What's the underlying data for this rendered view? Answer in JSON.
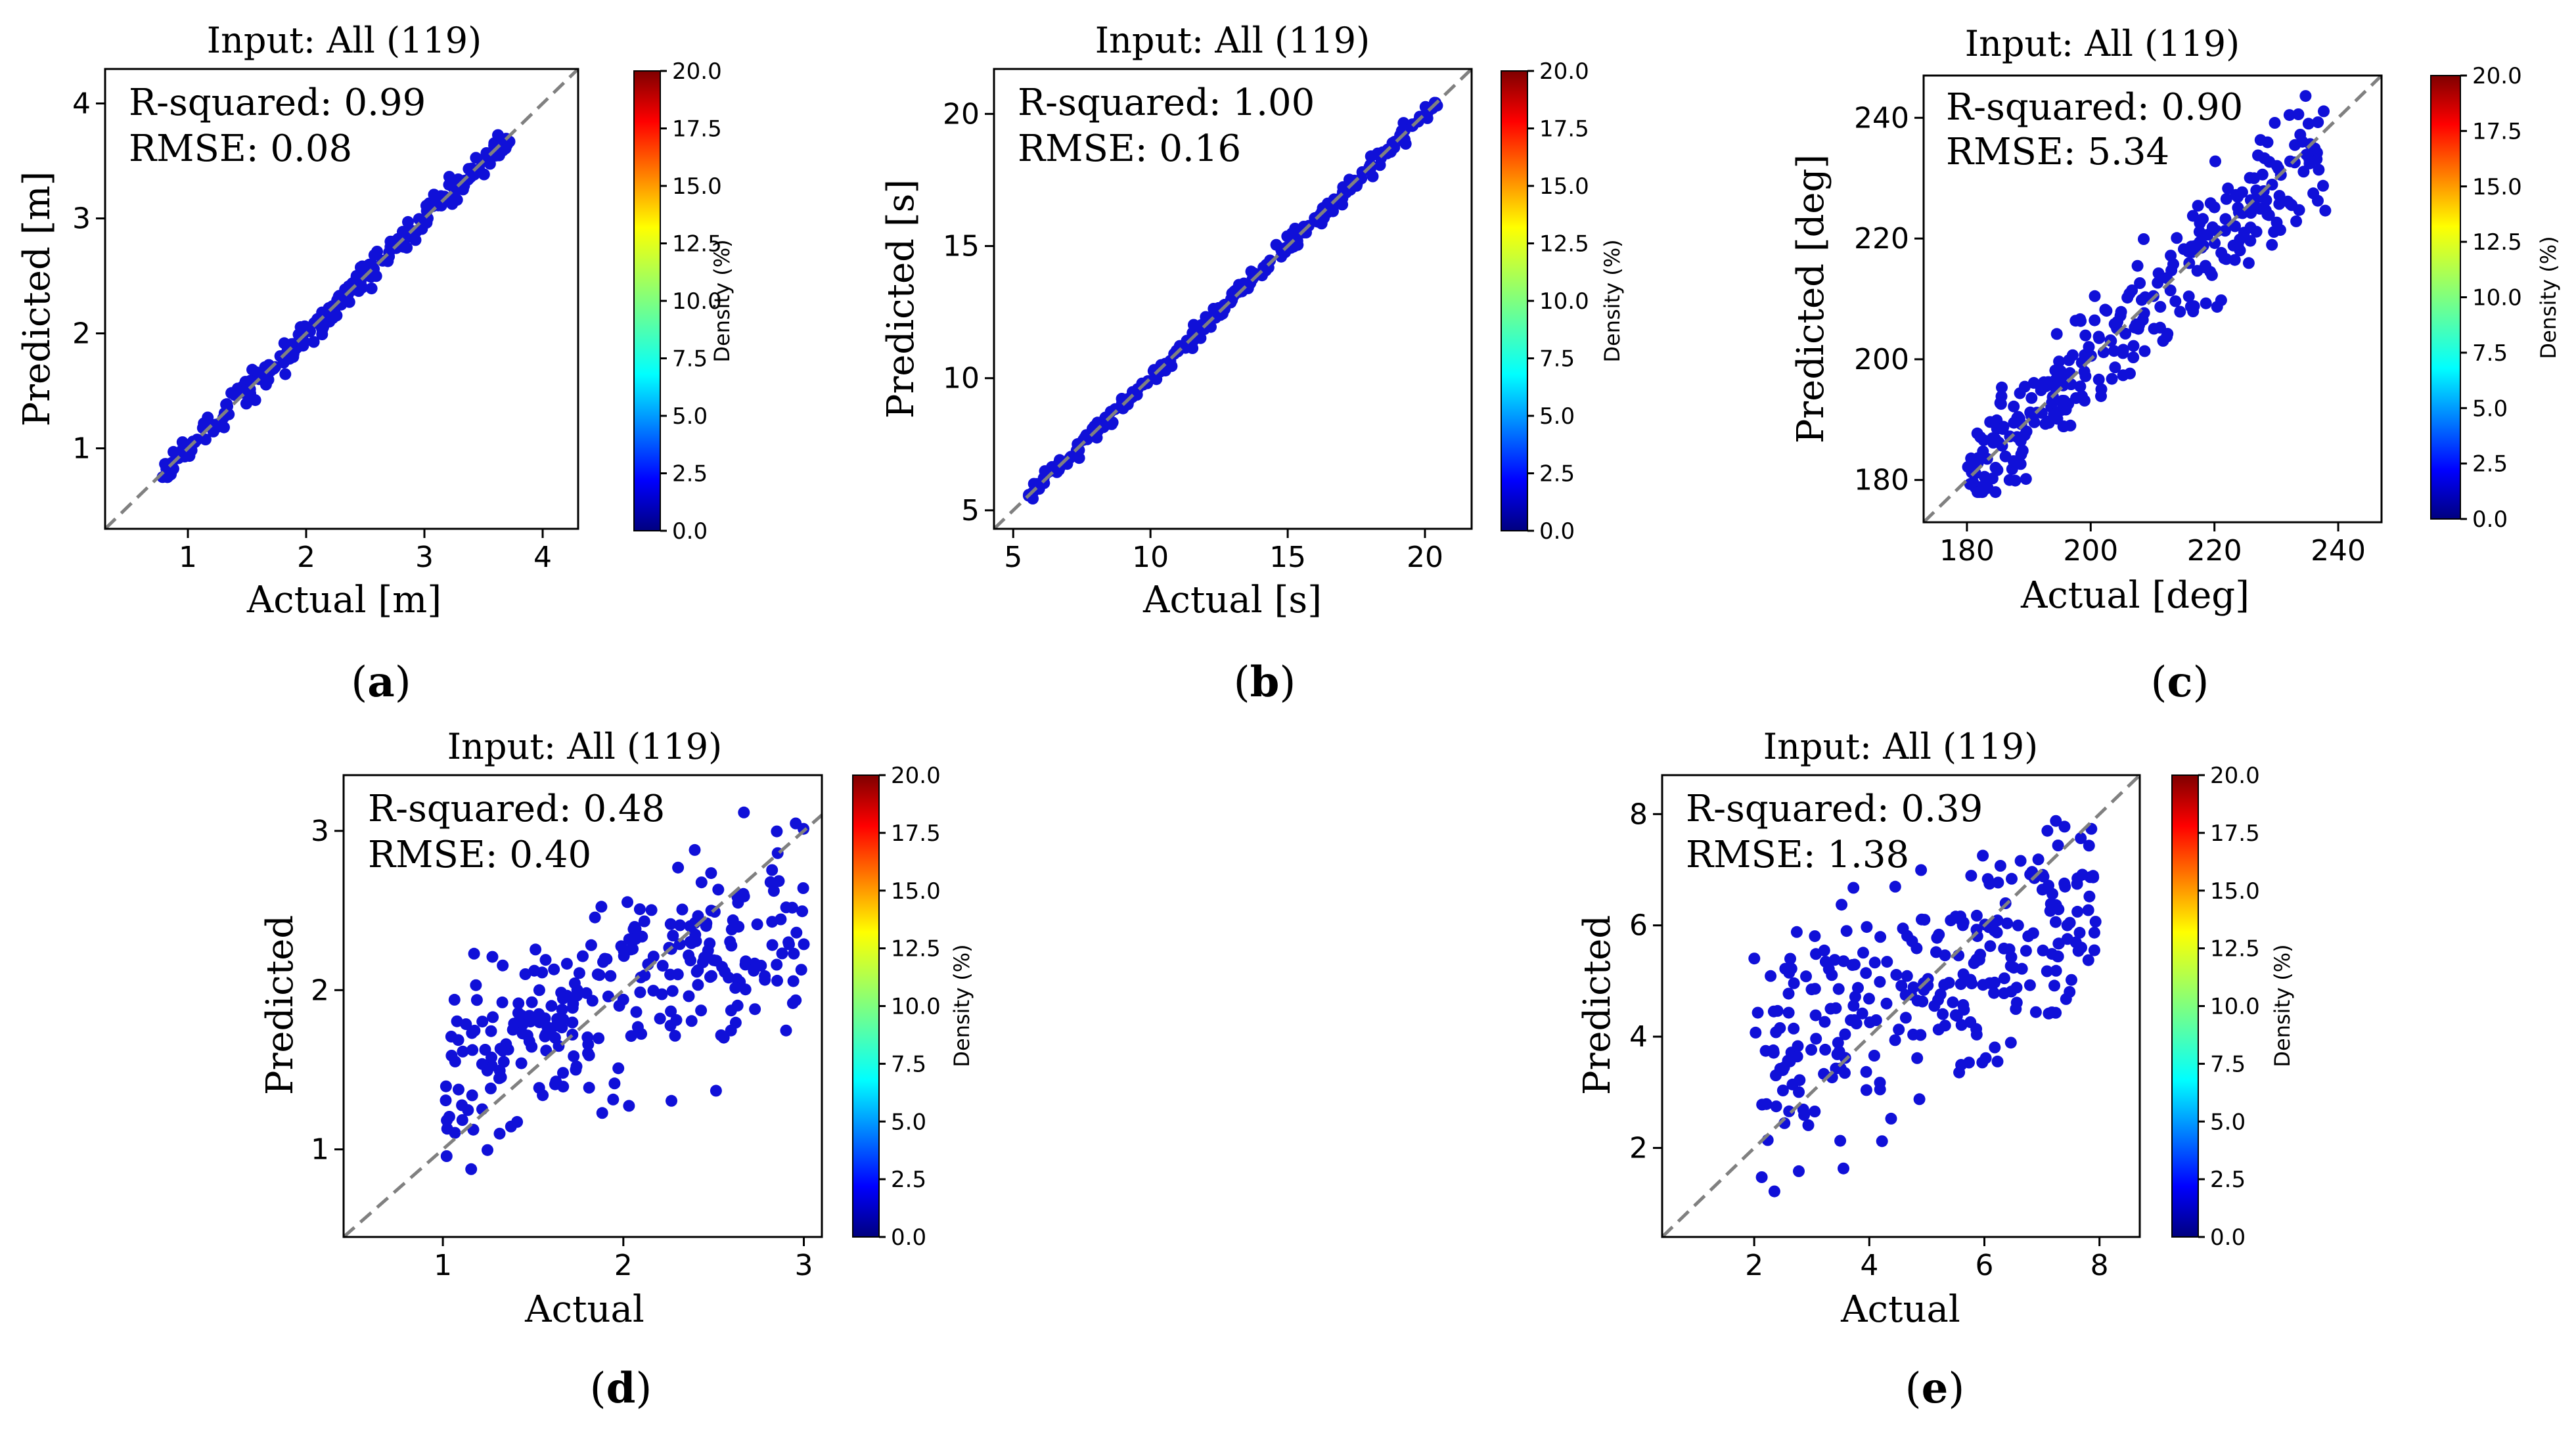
{
  "colorbar": {
    "label": "Density (%)",
    "ticks": [
      "0.0",
      "2.5",
      "5.0",
      "7.5",
      "10.0",
      "12.5",
      "15.0",
      "17.5",
      "20.0"
    ],
    "colors": [
      "#00007f",
      "#0000ff",
      "#007fff",
      "#00ffff",
      "#7fff7f",
      "#ffff00",
      "#ff7f00",
      "#ff0000",
      "#7f0000"
    ]
  },
  "point_color": "#1010d8",
  "diagonal_color": "#808080",
  "chart_data": [
    {
      "id": "a",
      "panel_label": "a",
      "type": "scatter",
      "title": "Input: All (119)",
      "xlabel": "Actual [m]",
      "ylabel": "Predicted [m]",
      "xlim": [
        0.3,
        4.3
      ],
      "ylim": [
        0.3,
        4.3
      ],
      "xticks": [
        1,
        2,
        3,
        4
      ],
      "yticks": [
        1,
        2,
        3,
        4
      ],
      "stats": [
        "R-squared: 0.99",
        "RMSE: 0.08"
      ],
      "scatter": {
        "n": 260,
        "min": 0.75,
        "max": 3.72,
        "sd_low": 0.05,
        "sd_high": 0.08,
        "seed": 11,
        "cap": [
          0.75,
          3.8
        ]
      }
    },
    {
      "id": "b",
      "panel_label": "b",
      "type": "scatter",
      "title": "Input: All (119)",
      "xlabel": "Actual [s]",
      "ylabel": "Predicted [s]",
      "xlim": [
        4.3,
        21.7
      ],
      "ylim": [
        4.3,
        21.7
      ],
      "xticks": [
        5,
        10,
        15,
        20
      ],
      "yticks": [
        5,
        10,
        15,
        20
      ],
      "stats": [
        "R-squared: 1.00",
        "RMSE: 0.16"
      ],
      "scatter": {
        "n": 260,
        "min": 5.5,
        "max": 20.5,
        "sd_low": 0.14,
        "sd_high": 0.18,
        "seed": 23,
        "cap": [
          5.3,
          20.8
        ]
      }
    },
    {
      "id": "c",
      "panel_label": "c",
      "type": "scatter",
      "title": "Input: All (119)",
      "xlabel": "Actual [deg]",
      "ylabel": "Predicted [deg]",
      "xlim": [
        173,
        247
      ],
      "ylim": [
        173,
        247
      ],
      "xticks": [
        180,
        200,
        220,
        240
      ],
      "yticks": [
        180,
        200,
        220,
        240
      ],
      "stats": [
        "R-squared: 0.90",
        "RMSE: 5.34"
      ],
      "scatter": {
        "n": 300,
        "min": 180,
        "max": 238,
        "sd_low": 4.5,
        "sd_high": 5.5,
        "seed": 37,
        "cap": [
          178,
          244
        ]
      }
    },
    {
      "id": "d",
      "panel_label": "d",
      "type": "scatter",
      "title": "Input: All (119)",
      "xlabel": "Actual",
      "ylabel": "Predicted",
      "xlim": [
        0.45,
        3.1
      ],
      "ylim": [
        0.45,
        3.35
      ],
      "xticks": [
        1,
        2,
        3
      ],
      "yticks": [
        1,
        2,
        3
      ],
      "stats": [
        "R-squared: 0.48",
        "RMSE: 0.40"
      ],
      "scatter": {
        "n": 280,
        "min": 1.0,
        "max": 3.0,
        "sd_low": 0.3,
        "sd_high": 0.33,
        "seed": 53,
        "cap": [
          0.65,
          3.2
        ],
        "shrink": 0.48,
        "center": 1.95
      }
    },
    {
      "id": "e",
      "panel_label": "e",
      "type": "scatter",
      "title": "Input: All (119)",
      "xlabel": "Actual",
      "ylabel": "Predicted",
      "xlim": [
        0.4,
        8.7
      ],
      "ylim": [
        0.4,
        8.7
      ],
      "xticks": [
        2,
        4,
        6,
        8
      ],
      "yticks": [
        2,
        4,
        6,
        8
      ],
      "stats": [
        "R-squared: 0.39",
        "RMSE: 1.38"
      ],
      "scatter": {
        "n": 280,
        "min": 2.0,
        "max": 8.0,
        "sd_low": 1.0,
        "sd_high": 1.0,
        "seed": 71,
        "cap": [
          0.85,
          8.3
        ],
        "shrink": 0.45,
        "center": 5.0
      }
    }
  ]
}
